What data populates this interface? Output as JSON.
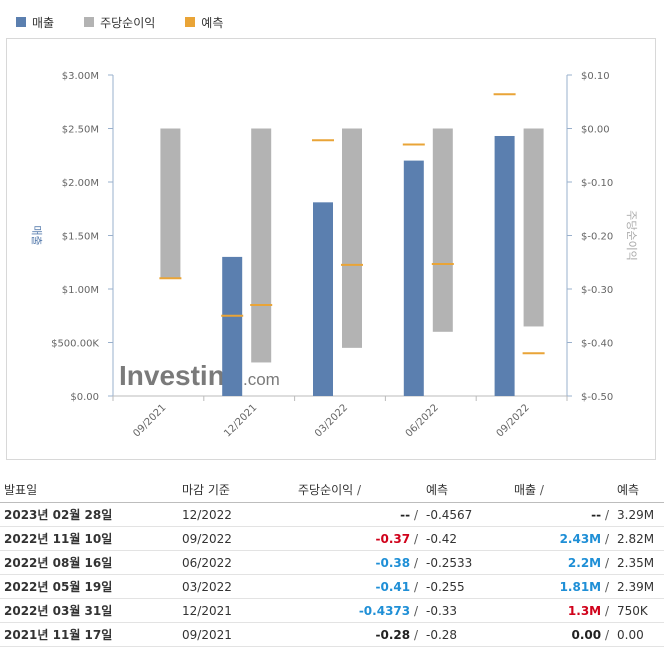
{
  "legend": [
    {
      "label": "매출",
      "color": "#5b7faf"
    },
    {
      "label": "주당순이익",
      "color": "#b3b3b3"
    },
    {
      "label": "예측",
      "color": "#e9a437"
    }
  ],
  "chart_data": {
    "type": "bar",
    "categories": [
      "09/2021",
      "12/2021",
      "03/2022",
      "06/2022",
      "09/2022"
    ],
    "y_left": {
      "label": "매출",
      "ticks": [
        "$3.00M",
        "$2.50M",
        "$2.00M",
        "$1.50M",
        "$1.00M",
        "$500.00K",
        "$0.00"
      ],
      "range": [
        0,
        3000000
      ]
    },
    "y_right": {
      "label": "주당순이익",
      "ticks": [
        "$0.10",
        "$0.00",
        "$-0.10",
        "$-0.20",
        "$-0.30",
        "$-0.40",
        "$-0.50"
      ],
      "range": [
        -0.5,
        0.1
      ]
    },
    "series": [
      {
        "name": "매출",
        "axis": "left",
        "values": [
          0,
          1300000,
          1810000,
          2200000,
          2430000
        ],
        "forecast": [
          null,
          750000,
          2390000,
          2350000,
          2820000
        ]
      },
      {
        "name": "주당순이익",
        "axis": "right",
        "values": [
          -0.28,
          -0.4373,
          -0.41,
          -0.38,
          -0.37
        ],
        "forecast": [
          -0.28,
          -0.33,
          -0.255,
          -0.2533,
          -0.42
        ]
      }
    ],
    "colors": {
      "revenue": "#5b7faf",
      "eps": "#b3b3b3",
      "forecast": "#e9a437"
    },
    "watermark": "Investing.com"
  },
  "table": {
    "headers": {
      "date": "발표일",
      "period": "마감 기준",
      "eps": "주당순이익",
      "eps_fc": "예측",
      "rev": "매출",
      "rev_fc": "예측",
      "sep": "/"
    },
    "rows": [
      {
        "date": "2023년 02월 28일",
        "period": "12/2022",
        "eps": "--",
        "eps_fc": "-0.4567",
        "rev": "--",
        "rev_fc": "3.29M",
        "eps_c": "neu",
        "rev_c": "neu"
      },
      {
        "date": "2022년 11월 10일",
        "period": "09/2022",
        "eps": "-0.37",
        "eps_fc": "-0.42",
        "rev": "2.43M",
        "rev_fc": "2.82M",
        "eps_c": "neg",
        "rev_c": "pos"
      },
      {
        "date": "2022년 08월 16일",
        "period": "06/2022",
        "eps": "-0.38",
        "eps_fc": "-0.2533",
        "rev": "2.2M",
        "rev_fc": "2.35M",
        "eps_c": "pos",
        "rev_c": "pos"
      },
      {
        "date": "2022년 05월 19일",
        "period": "03/2022",
        "eps": "-0.41",
        "eps_fc": "-0.255",
        "rev": "1.81M",
        "rev_fc": "2.39M",
        "eps_c": "pos",
        "rev_c": "pos"
      },
      {
        "date": "2022년 03월 31일",
        "period": "12/2021",
        "eps": "-0.4373",
        "eps_fc": "-0.33",
        "rev": "1.3M",
        "rev_fc": "750K",
        "eps_c": "pos",
        "rev_c": "neg"
      },
      {
        "date": "2021년 11월 17일",
        "period": "09/2021",
        "eps": "-0.28",
        "eps_fc": "-0.28",
        "rev": "0.00",
        "rev_fc": "0.00",
        "eps_c": "neu",
        "rev_c": "neu"
      }
    ]
  }
}
